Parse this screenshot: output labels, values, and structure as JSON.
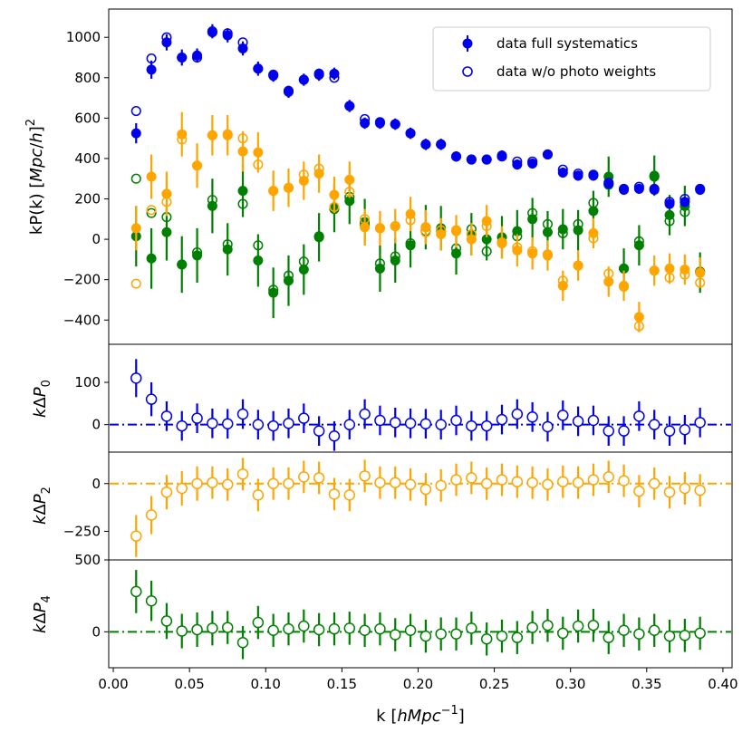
{
  "colors": {
    "blue": "#0000ee",
    "orange": "#ffa500",
    "green": "#008000"
  },
  "chart_data": [
    {
      "panel": "main",
      "type": "scatter",
      "xlabel": "k [hMpc^-1]",
      "ylabel": "kP(k) [Mpc/h]^2",
      "xlim": [
        -0.003,
        0.406
      ],
      "ylim": [
        -520,
        1140
      ],
      "x_ticks": [
        0.0,
        0.05,
        0.1,
        0.15,
        0.2,
        0.25,
        0.3,
        0.35,
        0.4
      ],
      "x_tick_labels": [
        "0.00",
        "0.05",
        "0.10",
        "0.15",
        "0.20",
        "0.25",
        "0.30",
        "0.35",
        "0.40"
      ],
      "y_ticks": [
        -400,
        -200,
        0,
        200,
        400,
        600,
        800,
        1000
      ],
      "y_tick_labels": [
        "−400",
        "−200",
        "0",
        "200",
        "400",
        "600",
        "800",
        "1000"
      ],
      "legend": {
        "position": "top-right",
        "entries": [
          "data full systematics",
          "data w/o photo weights"
        ]
      },
      "k": [
        0.015,
        0.025,
        0.035,
        0.045,
        0.055,
        0.065,
        0.075,
        0.085,
        0.095,
        0.105,
        0.115,
        0.125,
        0.135,
        0.145,
        0.155,
        0.165,
        0.175,
        0.185,
        0.195,
        0.205,
        0.215,
        0.225,
        0.235,
        0.245,
        0.255,
        0.265,
        0.275,
        0.285,
        0.295,
        0.305,
        0.315,
        0.325,
        0.335,
        0.345,
        0.355,
        0.365,
        0.375,
        0.385
      ],
      "series": [
        {
          "name": "P0 full systematics",
          "color": "blue",
          "marker": "filled",
          "values": [
            525,
            840,
            975,
            900,
            910,
            1030,
            1010,
            945,
            845,
            810,
            730,
            790,
            815,
            820,
            660,
            575,
            575,
            570,
            525,
            470,
            470,
            410,
            395,
            395,
            415,
            370,
            375,
            420,
            330,
            315,
            315,
            275,
            245,
            250,
            245,
            175,
            185,
            245
          ],
          "errors": [
            50,
            45,
            40,
            40,
            35,
            35,
            35,
            35,
            35,
            30,
            30,
            30,
            30,
            30,
            30,
            28,
            28,
            28,
            28,
            28,
            28,
            25,
            25,
            25,
            25,
            25,
            25,
            25,
            25,
            25,
            25,
            25,
            25,
            25,
            25,
            25,
            25,
            25
          ]
        },
        {
          "name": "P0 w/o photo weights",
          "color": "blue",
          "marker": "open",
          "values": [
            635,
            895,
            1000,
            900,
            900,
            1025,
            1020,
            975,
            845,
            815,
            735,
            790,
            820,
            800,
            660,
            595,
            580,
            570,
            525,
            470,
            470,
            410,
            395,
            395,
            410,
            385,
            385,
            420,
            345,
            325,
            320,
            280,
            250,
            260,
            250,
            185,
            200,
            250
          ]
        },
        {
          "name": "P2 full systematics",
          "color": "orange",
          "marker": "filled",
          "values": [
            55,
            310,
            225,
            520,
            365,
            515,
            515,
            435,
            430,
            240,
            255,
            290,
            325,
            220,
            295,
            60,
            55,
            65,
            125,
            60,
            25,
            40,
            0,
            90,
            -15,
            -55,
            -70,
            -80,
            -230,
            -130,
            30,
            -210,
            -230,
            -385,
            -155,
            -145,
            -150,
            -165
          ],
          "errors": [
            110,
            110,
            110,
            110,
            110,
            100,
            100,
            100,
            100,
            100,
            95,
            95,
            95,
            90,
            90,
            90,
            85,
            85,
            85,
            85,
            80,
            80,
            80,
            80,
            80,
            80,
            80,
            75,
            75,
            75,
            75,
            75,
            75,
            75,
            75,
            75,
            75,
            75
          ]
        },
        {
          "name": "P2 w/o photo weights",
          "color": "orange",
          "marker": "open",
          "values": [
            -220,
            145,
            185,
            495,
            365,
            515,
            520,
            500,
            370,
            240,
            255,
            320,
            350,
            160,
            235,
            100,
            55,
            65,
            95,
            35,
            45,
            45,
            25,
            65,
            -20,
            -40,
            -60,
            -75,
            -205,
            -130,
            5,
            -170,
            -235,
            -430,
            -155,
            -190,
            -175,
            -215
          ]
        },
        {
          "name": "P4 full systematics",
          "color": "green",
          "marker": "filled",
          "values": [
            15,
            -95,
            35,
            -125,
            -80,
            165,
            -50,
            240,
            -105,
            -265,
            -205,
            -150,
            10,
            155,
            190,
            85,
            -145,
            -105,
            -30,
            60,
            55,
            -70,
            25,
            0,
            10,
            40,
            100,
            35,
            50,
            45,
            140,
            310,
            -145,
            -30,
            315,
            120,
            165,
            -165
          ],
          "errors": [
            150,
            150,
            140,
            140,
            135,
            135,
            130,
            130,
            130,
            125,
            125,
            125,
            120,
            120,
            115,
            115,
            115,
            110,
            110,
            110,
            110,
            105,
            105,
            105,
            105,
            105,
            105,
            105,
            100,
            100,
            100,
            100,
            100,
            100,
            100,
            100,
            100,
            100
          ]
        },
        {
          "name": "P4 w/o photo weights",
          "color": "green",
          "marker": "open",
          "values": [
            300,
            130,
            110,
            -125,
            -65,
            195,
            -25,
            175,
            -30,
            -250,
            -180,
            -110,
            15,
            150,
            210,
            70,
            -120,
            -85,
            -20,
            40,
            40,
            -45,
            50,
            -60,
            -15,
            15,
            130,
            75,
            30,
            75,
            180,
            270,
            -145,
            -10,
            310,
            90,
            135,
            -160
          ]
        }
      ]
    },
    {
      "panel": "delta_p0",
      "type": "scatter",
      "ylabel": "kΔP_0",
      "ylim": [
        -65,
        190
      ],
      "y_ticks": [
        0,
        100
      ],
      "y_tick_labels": [
        "0",
        "100"
      ],
      "color": "blue",
      "values": [
        110,
        60,
        20,
        -3,
        15,
        3,
        2,
        25,
        0,
        -3,
        3,
        15,
        -15,
        -27,
        0,
        25,
        10,
        5,
        3,
        2,
        0,
        10,
        -3,
        -3,
        12,
        25,
        18,
        -5,
        22,
        8,
        10,
        -15,
        -15,
        20,
        0,
        -15,
        -12,
        5
      ],
      "errors": [
        45,
        40,
        35,
        35,
        35,
        35,
        35,
        35,
        35,
        35,
        35,
        35,
        35,
        35,
        35,
        35,
        35,
        35,
        35,
        35,
        35,
        35,
        35,
        35,
        35,
        35,
        35,
        35,
        35,
        35,
        35,
        35,
        35,
        35,
        35,
        35,
        35,
        35
      ]
    },
    {
      "panel": "delta_p2",
      "type": "scatter",
      "ylabel": "kΔP_2",
      "ylim": [
        -400,
        165
      ],
      "y_ticks": [
        -250,
        0
      ],
      "y_tick_labels": [
        "−250",
        "0"
      ],
      "color": "orange",
      "values": [
        -275,
        -165,
        -45,
        -25,
        0,
        5,
        -5,
        50,
        -60,
        0,
        0,
        35,
        30,
        -55,
        -60,
        40,
        5,
        5,
        -5,
        -30,
        -10,
        20,
        30,
        0,
        20,
        10,
        5,
        -5,
        10,
        5,
        20,
        35,
        15,
        -40,
        0,
        -45,
        -25,
        -35
      ],
      "errors": [
        110,
        100,
        90,
        90,
        90,
        85,
        85,
        85,
        85,
        85,
        85,
        85,
        85,
        85,
        85,
        85,
        85,
        85,
        85,
        85,
        85,
        85,
        85,
        85,
        85,
        85,
        85,
        85,
        85,
        85,
        85,
        85,
        85,
        85,
        85,
        85,
        85,
        85
      ]
    },
    {
      "panel": "delta_p4",
      "type": "scatter",
      "ylabel": "kΔP_4",
      "ylim": [
        -250,
        500
      ],
      "y_ticks": [
        0,
        500
      ],
      "y_tick_labels": [
        "0",
        "500"
      ],
      "color": "green",
      "values": [
        280,
        215,
        75,
        5,
        15,
        25,
        30,
        -75,
        65,
        10,
        20,
        40,
        15,
        20,
        25,
        10,
        20,
        -20,
        10,
        -30,
        -15,
        -15,
        25,
        -50,
        -30,
        -40,
        30,
        45,
        -10,
        40,
        45,
        -40,
        10,
        -15,
        10,
        -30,
        -25,
        -10
      ],
      "errors": [
        150,
        140,
        125,
        120,
        120,
        120,
        115,
        115,
        115,
        115,
        115,
        115,
        115,
        115,
        115,
        115,
        115,
        115,
        115,
        115,
        115,
        115,
        115,
        115,
        115,
        115,
        115,
        115,
        115,
        115,
        115,
        115,
        115,
        115,
        115,
        115,
        115,
        115
      ]
    }
  ]
}
